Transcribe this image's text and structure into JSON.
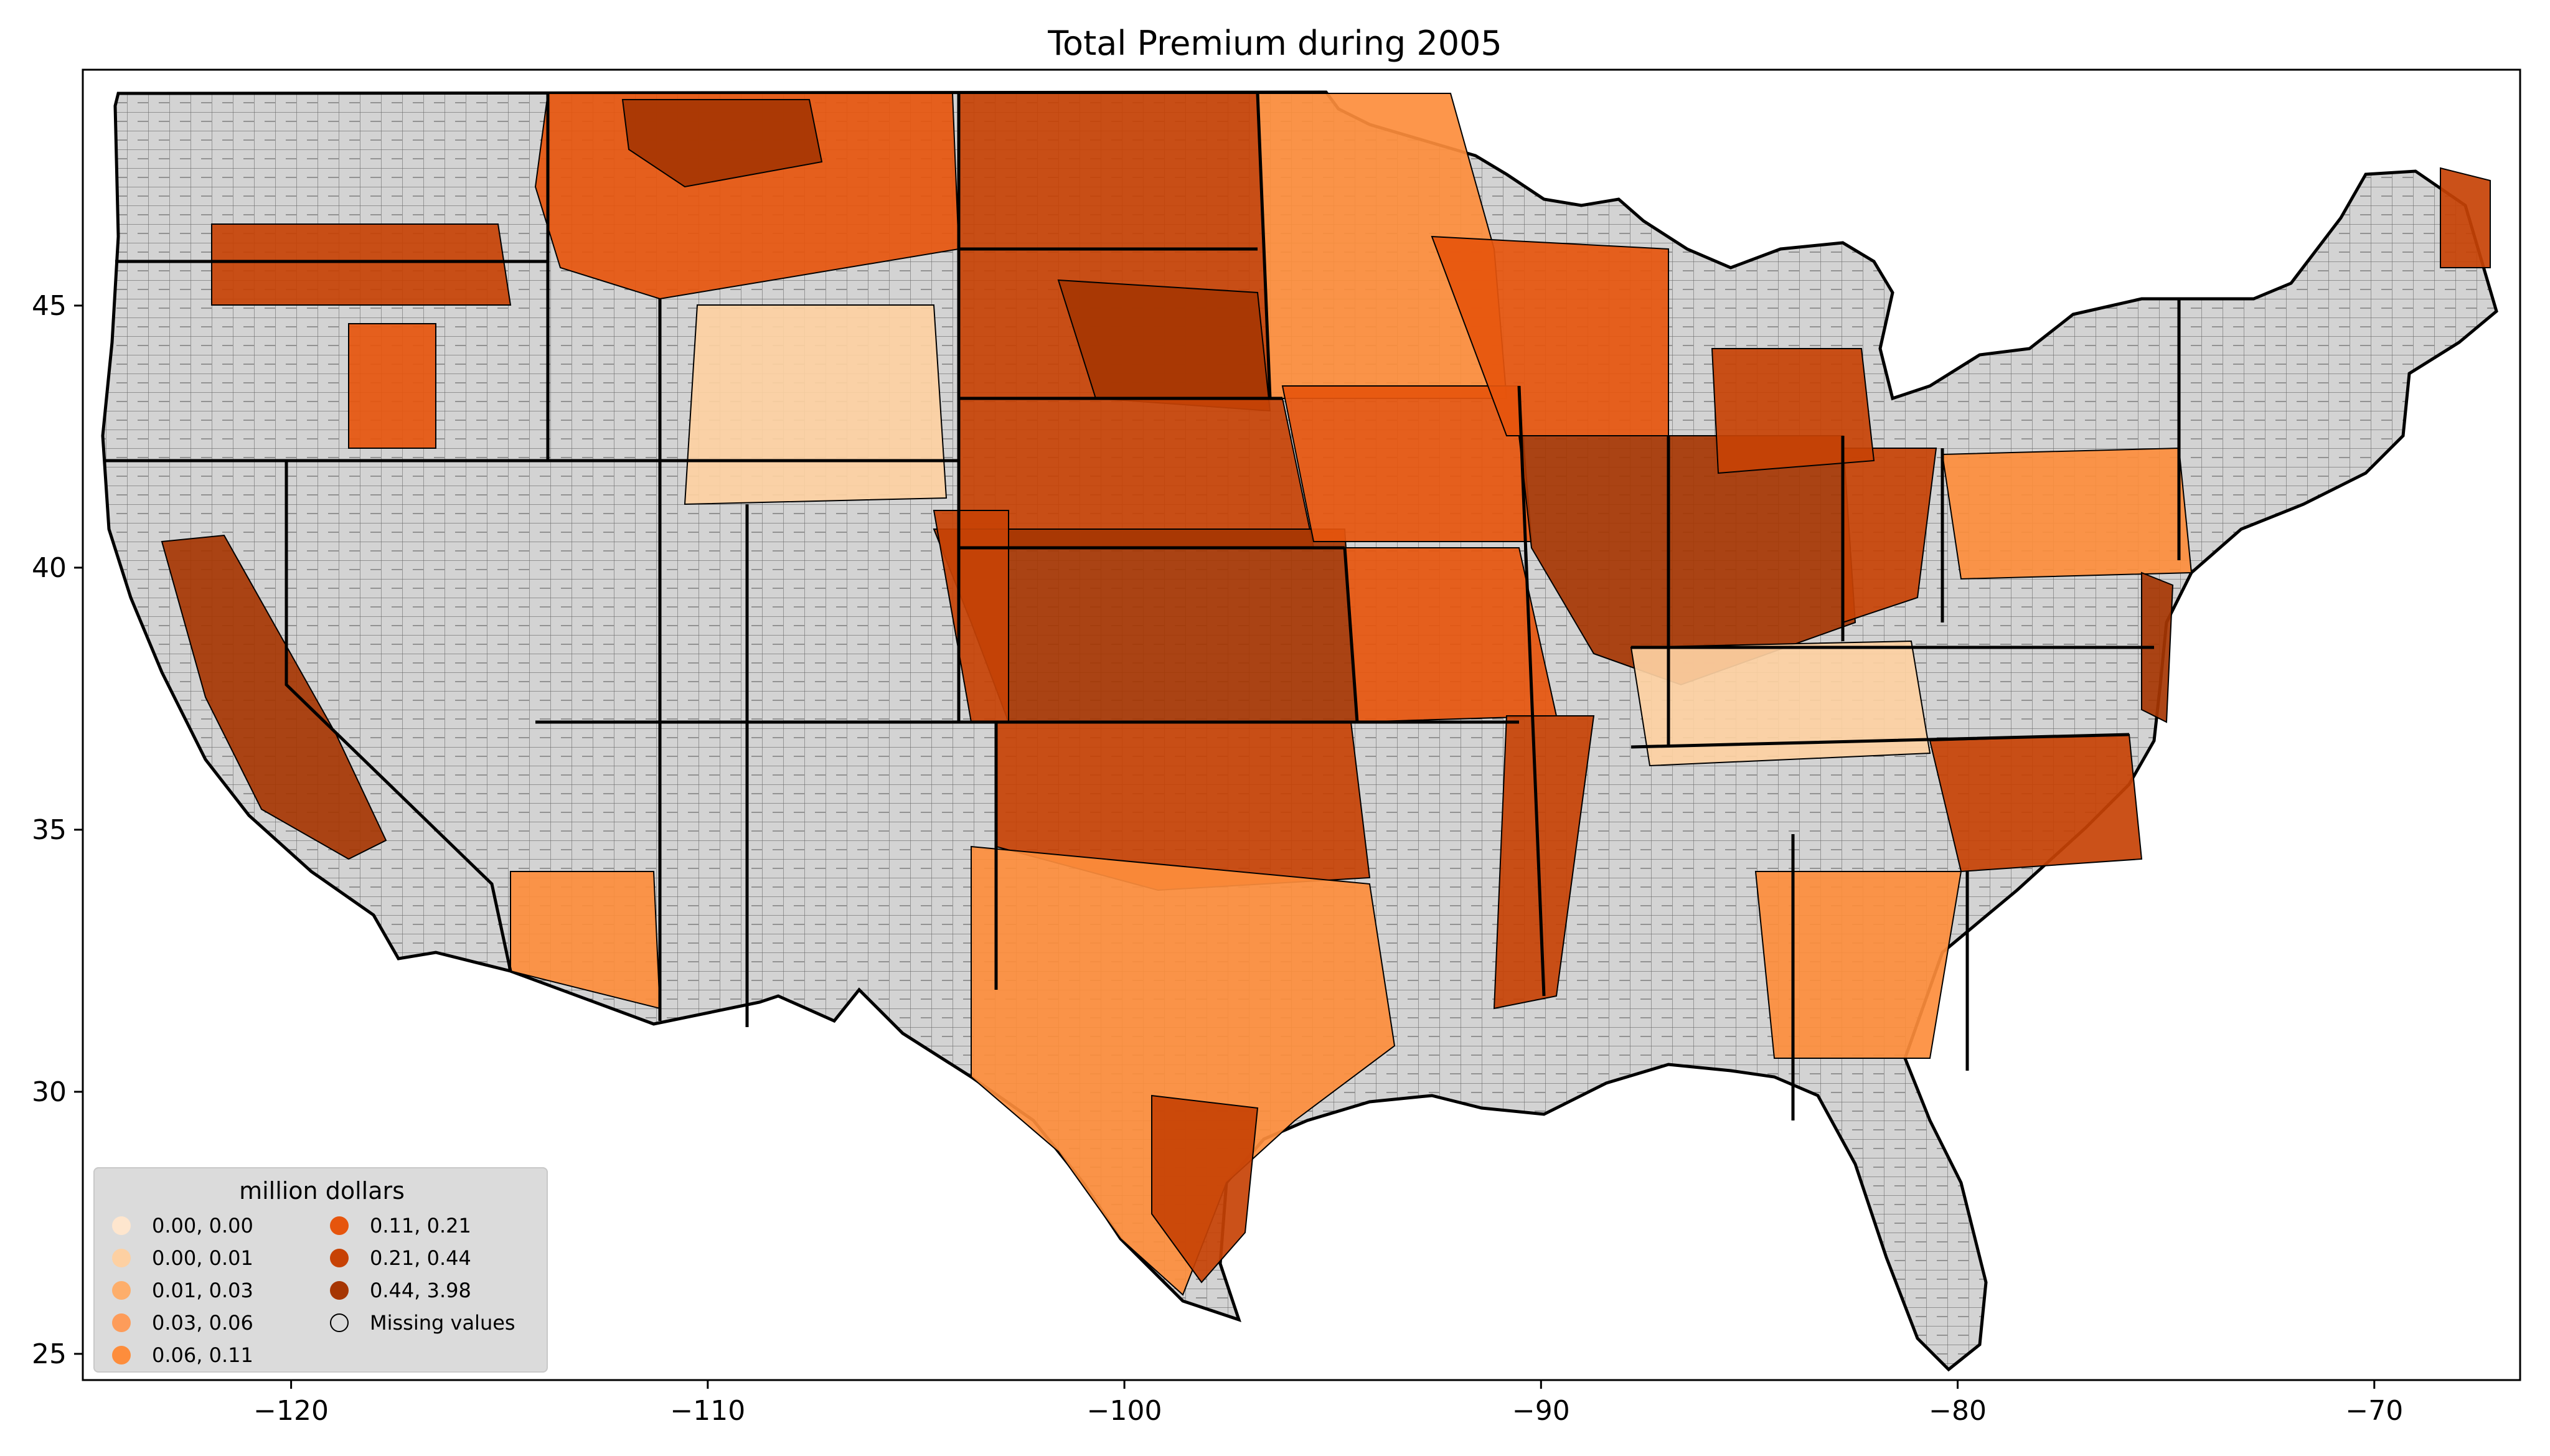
{
  "title": "Total  Premium during 2005",
  "map": {
    "type": "choropleth",
    "region": "Contiguous United States (county level)",
    "background_color": "#d3d3d3",
    "land_missing_color": "#d3d3d3",
    "county_border_color": "#000000",
    "x_axis": {
      "ticks": [
        -120,
        -110,
        -100,
        -90,
        -80,
        -70
      ],
      "labels": [
        "−120",
        "−110",
        "−100",
        "−90",
        "−80",
        "−70"
      ],
      "range": [
        -125,
        -66.5
      ]
    },
    "y_axis": {
      "ticks": [
        25,
        30,
        35,
        40,
        45
      ],
      "labels": [
        "25",
        "30",
        "35",
        "40",
        "45"
      ],
      "range": [
        24.5,
        49.5
      ]
    },
    "legend": {
      "title": "million dollars",
      "placement": "lower-left",
      "items": [
        {
          "label": "0.00, 0.00",
          "color": "#fee6ce"
        },
        {
          "label": "0.00, 0.01",
          "color": "#fdd0a2"
        },
        {
          "label": "0.01, 0.03",
          "color": "#fdae6b"
        },
        {
          "label": "0.03, 0.06",
          "color": "#fd9c5a"
        },
        {
          "label": "0.06, 0.11",
          "color": "#fd8d3c"
        },
        {
          "label": "0.11, 0.21",
          "color": "#e6550d"
        },
        {
          "label": "0.21, 0.44",
          "color": "#c74205"
        },
        {
          "label": "0.44, 3.98",
          "color": "#a63603"
        },
        {
          "label": "Missing values",
          "color": "#d3d3d3"
        }
      ]
    }
  }
}
